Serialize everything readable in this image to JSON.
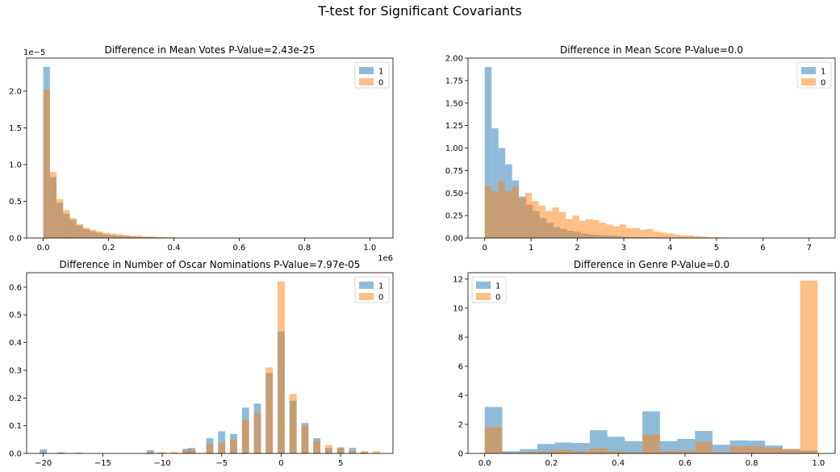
{
  "suptitle": "T-test for Significant Covariants",
  "colors": {
    "series_1": "#1f77b4",
    "series_0": "#ff7f0e",
    "alpha": 0.5
  },
  "chart_data": [
    {
      "type": "histogram",
      "title": "Difference in Mean Votes  P-Value=2.43e-25",
      "xlabel": "",
      "ylabel": "",
      "x_offset_label": "1e6",
      "y_offset_label": "1e−5",
      "xlim": [
        -0.051,
        1.071
      ],
      "ylim": [
        0,
        2.45
      ],
      "xticks": [
        0.0,
        0.2,
        0.4,
        0.6,
        0.8,
        1.0
      ],
      "xtick_labels": [
        "0.0",
        "0.2",
        "0.4",
        "0.6",
        "0.8",
        "1.0"
      ],
      "yticks": [
        0.0,
        0.5,
        1.0,
        1.5,
        2.0
      ],
      "ytick_labels": [
        "0.0",
        "0.5",
        "1.0",
        "1.5",
        "2.0"
      ],
      "legend": "top-right",
      "bins_1": {
        "start": 0.0,
        "width": 0.02031,
        "counts": [
          2.33,
          0.83,
          0.48,
          0.33,
          0.25,
          0.17,
          0.12,
          0.09,
          0.07,
          0.05,
          0.04,
          0.03,
          0.025,
          0.02,
          0.015,
          0.012,
          0.01,
          0.008,
          0.006,
          0.005
        ]
      },
      "bins_0": {
        "start": 0.0,
        "width": 0.0203,
        "counts": [
          2.02,
          0.9,
          0.53,
          0.38,
          0.27,
          0.19,
          0.14,
          0.11,
          0.09,
          0.07,
          0.06,
          0.05,
          0.04,
          0.03,
          0.03,
          0.02,
          0.02,
          0.015,
          0.012,
          0.01
        ]
      },
      "series": [
        {
          "name": "1"
        },
        {
          "name": "0"
        }
      ]
    },
    {
      "type": "histogram",
      "title": "Difference in Mean Score P-Value=0.0",
      "xlabel": "",
      "ylabel": "",
      "xlim": [
        -0.36,
        7.56
      ],
      "ylim": [
        0,
        2.0
      ],
      "xticks": [
        0,
        1,
        2,
        3,
        4,
        5,
        6,
        7
      ],
      "xtick_labels": [
        "0",
        "1",
        "2",
        "3",
        "4",
        "5",
        "6",
        "7"
      ],
      "yticks": [
        0.0,
        0.25,
        0.5,
        0.75,
        1.0,
        1.25,
        1.5,
        1.75,
        2.0
      ],
      "ytick_labels": [
        "0.00",
        "0.25",
        "0.50",
        "0.75",
        "1.00",
        "1.25",
        "1.50",
        "1.75",
        "2.00"
      ],
      "legend": "top-right",
      "bins_1": {
        "start": 0.0,
        "width": 0.148,
        "counts": [
          1.9,
          1.22,
          1.0,
          0.82,
          0.64,
          0.46,
          0.37,
          0.3,
          0.22,
          0.17,
          0.12,
          0.1,
          0.08,
          0.07,
          0.05,
          0.04,
          0.035,
          0.03,
          0.025,
          0.02,
          0.015,
          0.012,
          0.01,
          0.01,
          0.008,
          0.006,
          0.005,
          0.004,
          0.003,
          0.003,
          0.002,
          0.002,
          0.002,
          0.001
        ]
      },
      "bins_0": {
        "start": 0.0,
        "width": 0.1455,
        "counts": [
          0.58,
          0.52,
          0.63,
          0.52,
          0.57,
          0.44,
          0.5,
          0.41,
          0.36,
          0.3,
          0.34,
          0.29,
          0.21,
          0.25,
          0.19,
          0.21,
          0.2,
          0.17,
          0.15,
          0.13,
          0.15,
          0.11,
          0.11,
          0.09,
          0.1,
          0.07,
          0.06,
          0.05,
          0.04,
          0.03,
          0.03,
          0.02,
          0.015,
          0.01,
          0.008,
          0.006
        ]
      },
      "series": [
        {
          "name": "1"
        },
        {
          "name": "0"
        }
      ]
    },
    {
      "type": "histogram",
      "title": "Difference in Number of Oscar Nominations P-Value=7.97e-05",
      "xlabel": "",
      "ylabel": "",
      "xlim": [
        -21.4,
        9.4
      ],
      "ylim": [
        0,
        0.652
      ],
      "xticks": [
        -20,
        -15,
        -10,
        -5,
        0,
        5
      ],
      "xtick_labels": [
        "−20",
        "−15",
        "−10",
        "−5",
        "0",
        "5"
      ],
      "yticks": [
        0.0,
        0.1,
        0.2,
        0.3,
        0.4,
        0.5,
        0.6
      ],
      "ytick_labels": [
        "0.0",
        "0.1",
        "0.2",
        "0.3",
        "0.4",
        "0.5",
        "0.6"
      ],
      "legend": "top-right",
      "bins_1": {
        "x": [
          -20,
          -18.5,
          -17,
          -11,
          -8,
          -7.5,
          -6,
          -5,
          -4,
          -3,
          -2,
          -1,
          0,
          1,
          2,
          3,
          4,
          5,
          6,
          7
        ],
        "width": 0.6,
        "counts": [
          0.015,
          0.004,
          0.003,
          0.012,
          0.017,
          0.02,
          0.055,
          0.08,
          0.07,
          0.165,
          0.18,
          0.29,
          0.44,
          0.19,
          0.11,
          0.055,
          0.02,
          0.022,
          0.02,
          0.005
        ]
      },
      "bins_0": {
        "x": [
          -20,
          -18.5,
          -17,
          -11,
          -10,
          -9,
          -8,
          -7.5,
          -6,
          -5,
          -4,
          -3,
          -2,
          -1,
          0,
          1,
          2,
          3,
          4,
          5,
          6,
          7,
          8
        ],
        "width": 0.6,
        "counts": [
          0.003,
          0.002,
          0.001,
          0.004,
          0.005,
          0.005,
          0.012,
          0.013,
          0.035,
          0.04,
          0.05,
          0.12,
          0.145,
          0.31,
          0.62,
          0.215,
          0.1,
          0.045,
          0.03,
          0.02,
          0.01,
          0.008,
          0.008
        ]
      },
      "series": [
        {
          "name": "1"
        },
        {
          "name": "0"
        }
      ]
    },
    {
      "type": "histogram",
      "title": "Difference in Genre P-Value=0.0",
      "xlabel": "",
      "ylabel": "",
      "xlim": [
        -0.05,
        1.05
      ],
      "ylim": [
        0,
        12.44
      ],
      "xticks": [
        0.0,
        0.2,
        0.4,
        0.6,
        0.8,
        1.0
      ],
      "xtick_labels": [
        "0.0",
        "0.2",
        "0.4",
        "0.6",
        "0.8",
        "1.0"
      ],
      "yticks": [
        0,
        2,
        4,
        6,
        8,
        10,
        12
      ],
      "ytick_labels": [
        "0",
        "2",
        "4",
        "6",
        "8",
        "10",
        "12"
      ],
      "legend": "top-left",
      "bins_1": {
        "start": 0.0,
        "width": 0.0525,
        "counts": [
          3.2,
          0.15,
          0.3,
          0.65,
          0.75,
          0.72,
          1.6,
          1.15,
          0.85,
          2.9,
          0.85,
          1.0,
          1.55,
          0.6,
          0.9,
          0.88,
          0.55,
          0.3,
          0.2
        ]
      },
      "bins_0": {
        "start": 0.0,
        "width": 0.0525,
        "counts": [
          1.8,
          0.05,
          0.1,
          0.15,
          0.25,
          0.15,
          0.35,
          0.15,
          0.1,
          1.3,
          0.15,
          0.2,
          0.8,
          0.1,
          0.5,
          0.5,
          0.4,
          0.3,
          11.9
        ]
      },
      "series": [
        {
          "name": "1"
        },
        {
          "name": "0"
        }
      ]
    }
  ]
}
